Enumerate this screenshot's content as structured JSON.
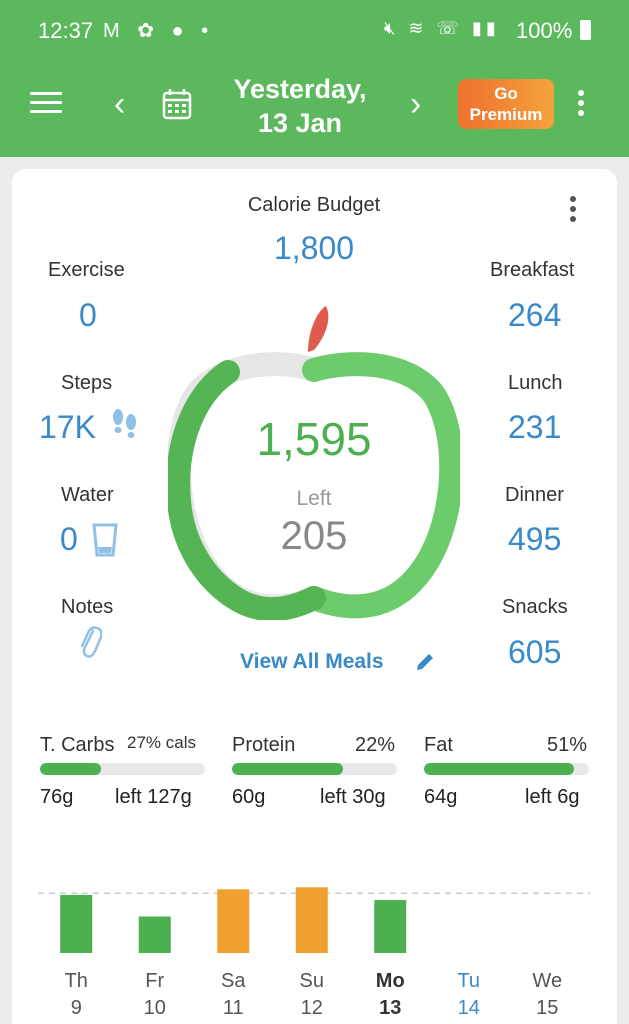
{
  "status": {
    "time": "12:37",
    "battery": "100%"
  },
  "header": {
    "date_line1": "Yesterday,",
    "date_line2": "13 Jan",
    "premium_line1": "Go",
    "premium_line2": "Premium"
  },
  "summary": {
    "budget_label": "Calorie Budget",
    "budget_value": "1,800",
    "total": "1,595",
    "left_label": "Left",
    "left_value": "205",
    "view_all": "View All Meals"
  },
  "left_stats": [
    {
      "label": "Exercise",
      "value": "0"
    },
    {
      "label": "Steps",
      "value": "17K"
    },
    {
      "label": "Water",
      "value": "0"
    },
    {
      "label": "Notes",
      "value": ""
    }
  ],
  "meals": [
    {
      "label": "Breakfast",
      "value": "264"
    },
    {
      "label": "Lunch",
      "value": "231"
    },
    {
      "label": "Dinner",
      "value": "495"
    },
    {
      "label": "Snacks",
      "value": "605"
    }
  ],
  "macros": [
    {
      "name": "T. Carbs",
      "pct": "27% cals",
      "eaten": "76g",
      "left": "left 127g",
      "fill": 0.37
    },
    {
      "name": "Protein",
      "pct": "22%",
      "eaten": "60g",
      "left": "left 30g",
      "fill": 0.67
    },
    {
      "name": "Fat",
      "pct": "51%",
      "eaten": "64g",
      "left": "left 6g",
      "fill": 0.91
    }
  ],
  "colors": {
    "header_green": "#5cb85c",
    "accent_blue": "#3a89c9",
    "under_budget": "#4caf50",
    "over_budget": "#f0a030"
  },
  "chart_data": {
    "type": "bar",
    "categories": [
      "Th 9",
      "Fr 10",
      "Sa 11",
      "Su 12",
      "Mo 13",
      "Tu 14",
      "We 15"
    ],
    "days": [
      {
        "name": "Th",
        "num": "9",
        "value": 1750,
        "status": "under",
        "selected": false,
        "today": false
      },
      {
        "name": "Fr",
        "num": "10",
        "value": 1100,
        "status": "under",
        "selected": false,
        "today": false
      },
      {
        "name": "Sa",
        "num": "11",
        "value": 1920,
        "status": "over",
        "selected": false,
        "today": false
      },
      {
        "name": "Su",
        "num": "12",
        "value": 1980,
        "status": "over",
        "selected": false,
        "today": false
      },
      {
        "name": "Mo",
        "num": "13",
        "value": 1595,
        "status": "under",
        "selected": true,
        "today": false
      },
      {
        "name": "Tu",
        "num": "14",
        "value": 0,
        "status": "none",
        "selected": false,
        "today": true
      },
      {
        "name": "We",
        "num": "15",
        "value": 0,
        "status": "none",
        "selected": false,
        "today": false
      }
    ],
    "budget_line": 1800,
    "ylim": [
      0,
      2200
    ]
  }
}
